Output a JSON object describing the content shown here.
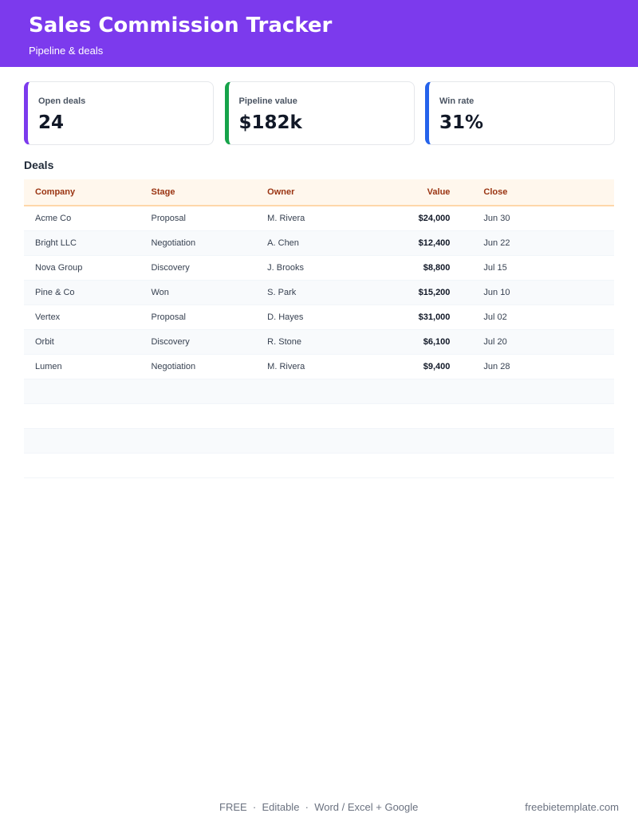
{
  "header": {
    "title": "Sales Commission Tracker",
    "subtitle": "Pipeline & deals"
  },
  "kpis": [
    {
      "label": "Open deals",
      "value": "24",
      "color": "#7c3aed"
    },
    {
      "label": "Pipeline value",
      "value": "$182k",
      "color": "#16a34a"
    },
    {
      "label": "Win rate",
      "value": "31%",
      "color": "#2563eb"
    }
  ],
  "table": {
    "title": "Deals",
    "columns": [
      "Company",
      "Stage",
      "Owner",
      "Value",
      "Close"
    ],
    "rows": [
      [
        "Acme Co",
        "Proposal",
        "M. Rivera",
        "$24,000",
        "Jun 30"
      ],
      [
        "Bright LLC",
        "Negotiation",
        "A. Chen",
        "$12,400",
        "Jun 22"
      ],
      [
        "Nova Group",
        "Discovery",
        "J. Brooks",
        "$8,800",
        "Jul 15"
      ],
      [
        "Pine & Co",
        "Won",
        "S. Park",
        "$15,200",
        "Jun 10"
      ],
      [
        "Vertex",
        "Proposal",
        "D. Hayes",
        "$31,000",
        "Jul 02"
      ],
      [
        "Orbit",
        "Discovery",
        "R. Stone",
        "$6,100",
        "Jul 20"
      ],
      [
        "Lumen",
        "Negotiation",
        "M. Rivera",
        "$9,400",
        "Jun 28"
      ]
    ]
  },
  "footer": {
    "tags": "FREE  ·  Editable  ·  Word / Excel + Google",
    "site": "freebietemplate.com"
  }
}
